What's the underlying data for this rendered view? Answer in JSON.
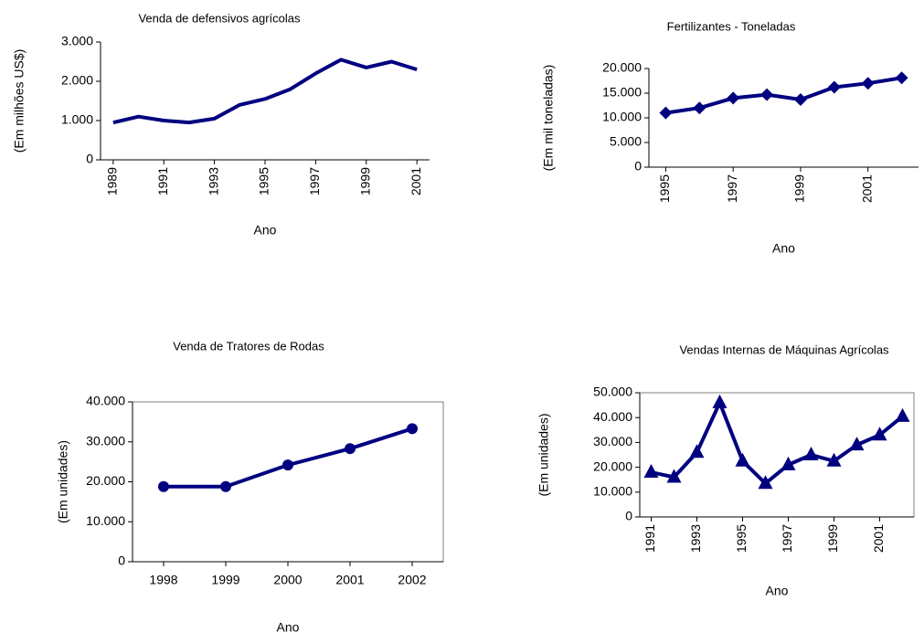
{
  "chart_data": [
    {
      "type": "line",
      "title": "Venda de defensivos agrícolas",
      "x_label": "Ano",
      "y_label": "(Em milhões US$)",
      "x": [
        1989,
        1990,
        1991,
        1992,
        1993,
        1994,
        1995,
        1996,
        1997,
        1998,
        1999,
        2000,
        2001
      ],
      "values": [
        950,
        1100,
        1000,
        950,
        1050,
        1400,
        1550,
        1800,
        2200,
        2550,
        2350,
        2500,
        2300
      ],
      "color": "#000080",
      "marker": "none",
      "plot_border": false,
      "xtick_rotation": -90,
      "xlim": [
        1988.5,
        2001.5
      ],
      "xticks": [
        1989,
        1991,
        1993,
        1995,
        1997,
        1999,
        2001
      ],
      "ylim": [
        0,
        3000
      ],
      "yticks": [
        0,
        {
          "value": 1000,
          "label": "1.000"
        },
        {
          "value": 2000,
          "label": "2.000"
        },
        {
          "value": 3000,
          "label": "3.000"
        }
      ]
    },
    {
      "type": "line",
      "title": "Fertilizantes - Toneladas",
      "x_label": "Ano",
      "y_label": "(Em mil toneladas)",
      "x": [
        1995,
        1996,
        1997,
        1998,
        1999,
        2000,
        2001,
        2002
      ],
      "values": [
        11000,
        12000,
        14000,
        14700,
        13700,
        16200,
        17000,
        18100
      ],
      "color": "#000080",
      "marker": "diamond",
      "plot_border": false,
      "xtick_rotation": -90,
      "xlim": [
        1994.5,
        2002.5
      ],
      "xticks": [
        1995,
        1997,
        1999,
        2001
      ],
      "ylim": [
        0,
        20000
      ],
      "yticks": [
        0,
        {
          "value": 5000,
          "label": "5.000"
        },
        {
          "value": 10000,
          "label": "10.000"
        },
        {
          "value": 15000,
          "label": "15.000"
        },
        {
          "value": 20000,
          "label": "20.000"
        }
      ]
    },
    {
      "type": "line",
      "title": "Venda de Tratores  de Rodas",
      "x_label": "Ano",
      "y_label": "(Em unidades)",
      "x": [
        1998,
        1999,
        2000,
        2001,
        2002
      ],
      "values": [
        18800,
        18800,
        24200,
        28300,
        33300
      ],
      "color": "#000080",
      "marker": "circle",
      "plot_border": true,
      "xtick_rotation": 0,
      "xlim": [
        1997.5,
        2002.5
      ],
      "xticks": [
        1998,
        1999,
        2000,
        2001,
        2002
      ],
      "ylim": [
        0,
        40000
      ],
      "yticks": [
        0,
        {
          "value": 10000,
          "label": "10.000"
        },
        {
          "value": 20000,
          "label": "20.000"
        },
        {
          "value": 30000,
          "label": "30.000"
        },
        {
          "value": 40000,
          "label": "40.000"
        }
      ]
    },
    {
      "type": "line",
      "title": "Vendas Internas de Máquinas Agrícolas",
      "x_label": "Ano",
      "y_label": "(Em unidades)",
      "x": [
        1991,
        1992,
        1993,
        1994,
        1995,
        1996,
        1997,
        1998,
        1999,
        2000,
        2001,
        2002
      ],
      "values": [
        18000,
        16000,
        26000,
        46000,
        22500,
        13500,
        21000,
        25000,
        22500,
        29000,
        33000,
        40500
      ],
      "color": "#000080",
      "marker": "triangle",
      "plot_border": true,
      "xtick_rotation": -90,
      "xlim": [
        1990.5,
        2002.5
      ],
      "xticks": [
        1991,
        1993,
        1995,
        1997,
        1999,
        2001
      ],
      "ylim": [
        0,
        50000
      ],
      "yticks": [
        0,
        {
          "value": 10000,
          "label": "10.000"
        },
        {
          "value": 20000,
          "label": "20.000"
        },
        {
          "value": 30000,
          "label": "30.000"
        },
        {
          "value": 40000,
          "label": "40.000"
        },
        {
          "value": 50000,
          "label": "50.000"
        }
      ]
    }
  ]
}
